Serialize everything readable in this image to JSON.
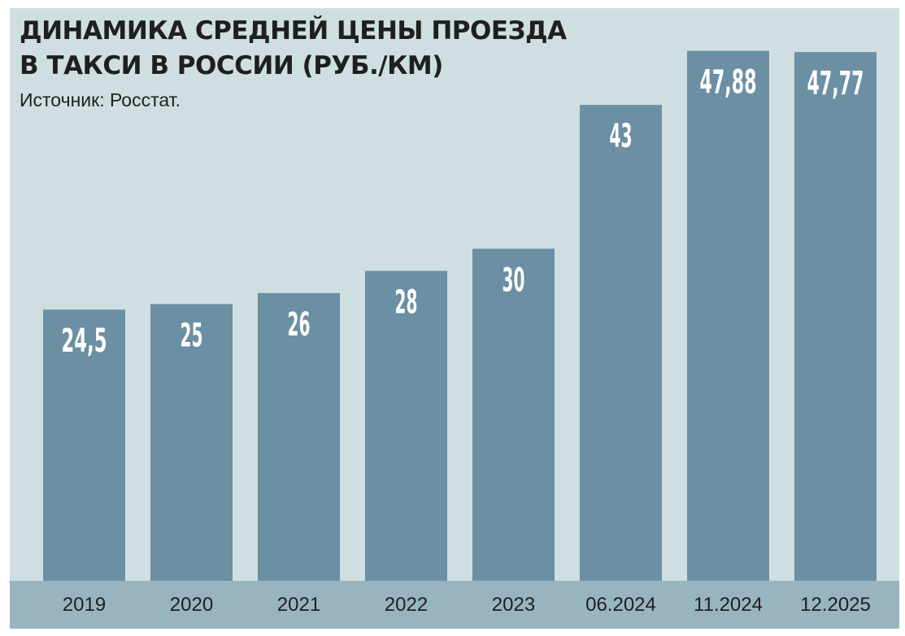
{
  "chart_data": {
    "type": "bar",
    "title_lines": [
      "ДИНАМИКА СРЕДНЕЙ ЦЕНЫ ПРОЕЗДА",
      "В ТАКСИ В РОССИИ (РУБ./КМ)"
    ],
    "subtitle": "Источник: Росстат.",
    "xlabel": "",
    "ylabel": "",
    "categories": [
      "2019",
      "2020",
      "2021",
      "2022",
      "2023",
      "06.2024",
      "11.2024",
      "12.2025"
    ],
    "values": [
      24.5,
      25,
      26,
      28,
      30,
      43,
      47.88,
      47.77
    ],
    "value_labels": [
      "24,5",
      "25",
      "26",
      "28",
      "30",
      "43",
      "47,88",
      "47,77"
    ],
    "ylim": [
      0,
      48
    ],
    "grid": false,
    "legend": "none",
    "colors": {
      "background": "#cfdfe1",
      "axis_band": "#98b5bf",
      "bar": "#6b8fa3",
      "bar_label": "#ffffff",
      "text": "#1f1f1f"
    }
  }
}
